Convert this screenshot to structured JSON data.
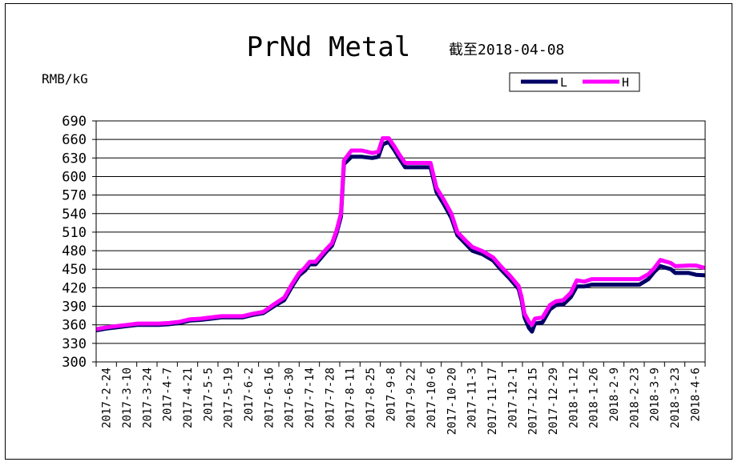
{
  "chart_data": {
    "type": "line",
    "title": "PrNd Metal",
    "subtitle": "截至2018-04-08",
    "ylabel": "RMB/kG",
    "xlabel": "",
    "ylim": [
      300,
      690
    ],
    "yticks": [
      300,
      330,
      360,
      390,
      420,
      450,
      480,
      510,
      540,
      570,
      600,
      630,
      660,
      690
    ],
    "xlim": [
      "2017-02-24",
      "2018-04-08"
    ],
    "grid": true,
    "legend": "top-right",
    "x_tick_labels": [
      "2017-2-24",
      "2017-3-10",
      "2017-3-24",
      "2017-4-7",
      "2017-4-21",
      "2017-5-5",
      "2017-5-19",
      "2017-6-2",
      "2017-6-16",
      "2017-6-30",
      "2017-7-14",
      "2017-7-28",
      "2017-8-11",
      "2017-8-25",
      "2017-9-8",
      "2017-9-22",
      "2017-10-6",
      "2017-10-20",
      "2017-11-3",
      "2017-11-17",
      "2017-12-1",
      "2017-12-15",
      "2017-12-29",
      "2018-1-12",
      "2018-1-26",
      "2018-2-9",
      "2018-2-23",
      "2018-3-9",
      "2018-3-23",
      "2018-4-6"
    ],
    "series": [
      {
        "name": "L",
        "color": "#000066",
        "points": [
          [
            "2017-02-24",
            351
          ],
          [
            "2017-03-03",
            354
          ],
          [
            "2017-03-10",
            356
          ],
          [
            "2017-03-17",
            358
          ],
          [
            "2017-03-24",
            360
          ],
          [
            "2017-04-07",
            360
          ],
          [
            "2017-04-14",
            361
          ],
          [
            "2017-04-21",
            363
          ],
          [
            "2017-04-28",
            367
          ],
          [
            "2017-05-05",
            368
          ],
          [
            "2017-05-12",
            370
          ],
          [
            "2017-05-19",
            372
          ],
          [
            "2017-06-02",
            372
          ],
          [
            "2017-06-09",
            376
          ],
          [
            "2017-06-16",
            379
          ],
          [
            "2017-06-23",
            390
          ],
          [
            "2017-06-30",
            400
          ],
          [
            "2017-07-05",
            421
          ],
          [
            "2017-07-10",
            440
          ],
          [
            "2017-07-14",
            448
          ],
          [
            "2017-07-17",
            458
          ],
          [
            "2017-07-21",
            458
          ],
          [
            "2017-07-28",
            478
          ],
          [
            "2017-08-01",
            488
          ],
          [
            "2017-08-04",
            508
          ],
          [
            "2017-08-07",
            535
          ],
          [
            "2017-08-09",
            620
          ],
          [
            "2017-08-14",
            632
          ],
          [
            "2017-08-21",
            632
          ],
          [
            "2017-08-28",
            630
          ],
          [
            "2017-09-01",
            632
          ],
          [
            "2017-09-04",
            652
          ],
          [
            "2017-09-08",
            656
          ],
          [
            "2017-09-12",
            642
          ],
          [
            "2017-09-15",
            630
          ],
          [
            "2017-09-19",
            615
          ],
          [
            "2017-09-25",
            615
          ],
          [
            "2017-10-06",
            615
          ],
          [
            "2017-10-10",
            575
          ],
          [
            "2017-10-15",
            555
          ],
          [
            "2017-10-20",
            533
          ],
          [
            "2017-10-24",
            505
          ],
          [
            "2017-10-30",
            490
          ],
          [
            "2017-11-03",
            480
          ],
          [
            "2017-11-10",
            474
          ],
          [
            "2017-11-17",
            464
          ],
          [
            "2017-11-22",
            450
          ],
          [
            "2017-11-28",
            435
          ],
          [
            "2017-12-04",
            418
          ],
          [
            "2017-12-06",
            400
          ],
          [
            "2017-12-08",
            372
          ],
          [
            "2017-12-11",
            355
          ],
          [
            "2017-12-13",
            349
          ],
          [
            "2017-12-15",
            362
          ],
          [
            "2017-12-20",
            364
          ],
          [
            "2017-12-25",
            385
          ],
          [
            "2017-12-29",
            392
          ],
          [
            "2018-01-03",
            393
          ],
          [
            "2018-01-08",
            405
          ],
          [
            "2018-01-12",
            422
          ],
          [
            "2018-01-17",
            422
          ],
          [
            "2018-01-22",
            425
          ],
          [
            "2018-02-01",
            425
          ],
          [
            "2018-02-23",
            425
          ],
          [
            "2018-03-01",
            434
          ],
          [
            "2018-03-05",
            446
          ],
          [
            "2018-03-09",
            455
          ],
          [
            "2018-03-16",
            450
          ],
          [
            "2018-03-19",
            444
          ],
          [
            "2018-03-28",
            444
          ],
          [
            "2018-04-02",
            441
          ],
          [
            "2018-04-08",
            440
          ]
        ]
      },
      {
        "name": "H",
        "color": "#ff00ff",
        "points": [
          [
            "2017-02-24",
            353
          ],
          [
            "2017-03-03",
            356
          ],
          [
            "2017-03-10",
            358
          ],
          [
            "2017-03-17",
            360
          ],
          [
            "2017-03-24",
            362
          ],
          [
            "2017-04-07",
            362
          ],
          [
            "2017-04-14",
            363
          ],
          [
            "2017-04-21",
            365
          ],
          [
            "2017-04-28",
            369
          ],
          [
            "2017-05-05",
            370
          ],
          [
            "2017-05-12",
            372
          ],
          [
            "2017-05-19",
            374
          ],
          [
            "2017-06-02",
            374
          ],
          [
            "2017-06-09",
            378
          ],
          [
            "2017-06-16",
            381
          ],
          [
            "2017-06-23",
            393
          ],
          [
            "2017-06-30",
            404
          ],
          [
            "2017-07-05",
            425
          ],
          [
            "2017-07-10",
            444
          ],
          [
            "2017-07-14",
            453
          ],
          [
            "2017-07-17",
            462
          ],
          [
            "2017-07-21",
            462
          ],
          [
            "2017-07-28",
            482
          ],
          [
            "2017-08-01",
            492
          ],
          [
            "2017-08-04",
            512
          ],
          [
            "2017-08-07",
            540
          ],
          [
            "2017-08-09",
            626
          ],
          [
            "2017-08-14",
            642
          ],
          [
            "2017-08-21",
            642
          ],
          [
            "2017-08-28",
            638
          ],
          [
            "2017-09-01",
            640
          ],
          [
            "2017-09-04",
            662
          ],
          [
            "2017-09-08",
            662
          ],
          [
            "2017-09-12",
            648
          ],
          [
            "2017-09-15",
            636
          ],
          [
            "2017-09-19",
            622
          ],
          [
            "2017-09-25",
            622
          ],
          [
            "2017-10-06",
            622
          ],
          [
            "2017-10-10",
            582
          ],
          [
            "2017-10-15",
            562
          ],
          [
            "2017-10-20",
            540
          ],
          [
            "2017-10-24",
            510
          ],
          [
            "2017-10-30",
            495
          ],
          [
            "2017-11-03",
            486
          ],
          [
            "2017-11-10",
            479
          ],
          [
            "2017-11-17",
            469
          ],
          [
            "2017-11-22",
            455
          ],
          [
            "2017-11-28",
            440
          ],
          [
            "2017-12-04",
            423
          ],
          [
            "2017-12-06",
            405
          ],
          [
            "2017-12-08",
            378
          ],
          [
            "2017-12-11",
            365
          ],
          [
            "2017-12-13",
            360
          ],
          [
            "2017-12-15",
            370
          ],
          [
            "2017-12-20",
            372
          ],
          [
            "2017-12-25",
            392
          ],
          [
            "2017-12-29",
            398
          ],
          [
            "2018-01-03",
            400
          ],
          [
            "2018-01-08",
            412
          ],
          [
            "2018-01-12",
            432
          ],
          [
            "2018-01-17",
            430
          ],
          [
            "2018-01-22",
            434
          ],
          [
            "2018-02-01",
            434
          ],
          [
            "2018-02-23",
            434
          ],
          [
            "2018-03-01",
            442
          ],
          [
            "2018-03-05",
            452
          ],
          [
            "2018-03-09",
            465
          ],
          [
            "2018-03-16",
            460
          ],
          [
            "2018-03-19",
            455
          ],
          [
            "2018-03-28",
            456
          ],
          [
            "2018-04-02",
            456
          ],
          [
            "2018-04-08",
            452
          ]
        ]
      }
    ]
  }
}
